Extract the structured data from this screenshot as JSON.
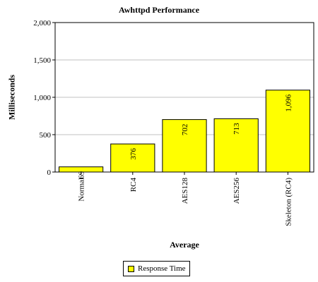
{
  "chart_data": {
    "type": "bar",
    "title": "Awhttpd Performance",
    "xlabel": "Average",
    "ylabel": "Milliseconds",
    "categories": [
      "Normal",
      "RC4",
      "AES128",
      "AES256",
      "Skeleton (RC4)"
    ],
    "series": [
      {
        "name": "Response Time",
        "values": [
          69,
          376,
          702,
          713,
          1096
        ],
        "color": "#ffff00"
      }
    ],
    "value_labels": [
      "69",
      "376",
      "702",
      "713",
      "1,096"
    ],
    "ylim": [
      0,
      2000
    ],
    "yticks": [
      0,
      500,
      1000,
      1500,
      2000
    ],
    "ytick_labels": [
      "0",
      "500",
      "1,000",
      "1,500",
      "2,000"
    ],
    "grid": true,
    "legend_position": "bottom"
  }
}
